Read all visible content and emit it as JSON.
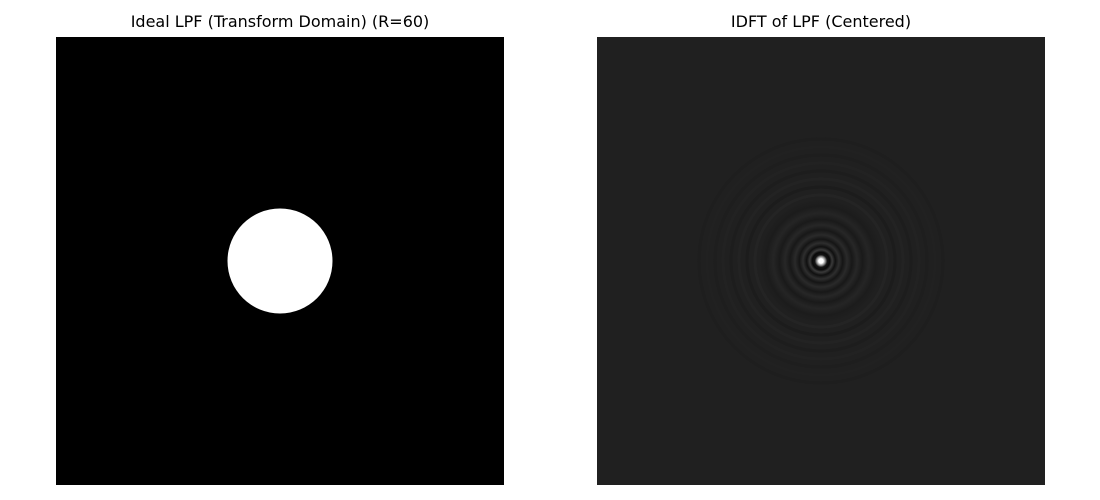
{
  "chart_data": [
    {
      "type": "heatmap",
      "title": "Ideal LPF (Transform Domain) (R=60)",
      "colormap": "gray",
      "axes": "off",
      "image_size": [
        512,
        512
      ],
      "filter": "ideal-low-pass",
      "radius": 60,
      "center": [
        256,
        256
      ],
      "inside_value": 1,
      "outside_value": 0,
      "colors": {
        "inside": "#ffffff",
        "outside": "#000000"
      }
    },
    {
      "type": "heatmap",
      "title": "IDFT of LPF (Centered)",
      "colormap": "gray",
      "axes": "off",
      "image_size": [
        512,
        512
      ],
      "content": "centered-airy-pattern",
      "center": [
        256,
        256
      ],
      "colors": {
        "background": "#202020",
        "peak": "#ffffff",
        "ring_dark": "#0c0c0c",
        "ring_light": "#2e2e2e"
      }
    }
  ]
}
